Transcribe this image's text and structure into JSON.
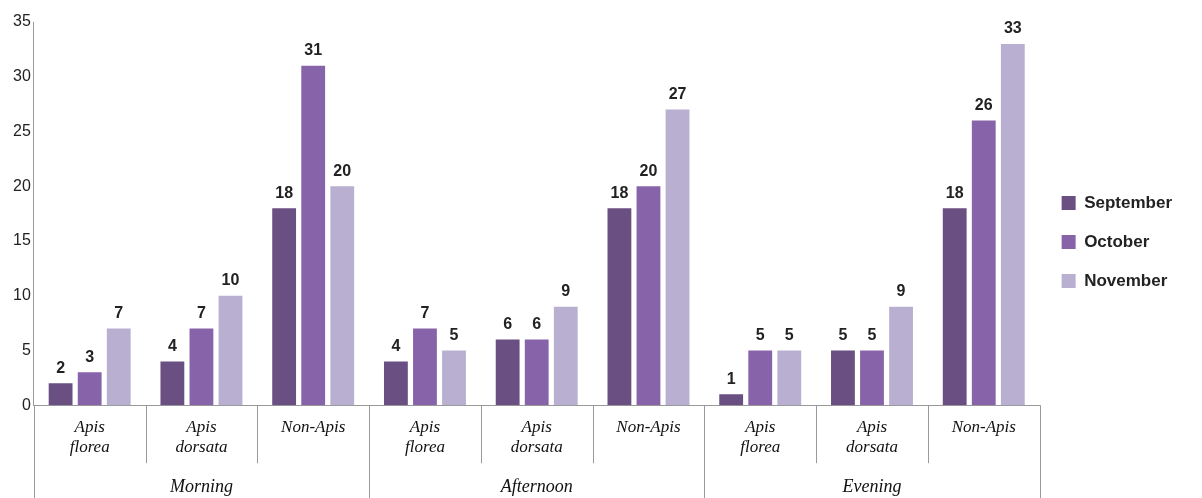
{
  "chart_data": {
    "type": "bar",
    "categories": [
      "Apis florea",
      "Apis dorsata",
      "Non-Apis",
      "Apis florea",
      "Apis dorsata",
      "Non-Apis",
      "Apis florea",
      "Apis dorsata",
      "Non-Apis"
    ],
    "series": [
      {
        "name": "September",
        "color": "#6a4f82",
        "values": [
          2,
          4,
          18,
          4,
          6,
          18,
          1,
          5,
          18
        ]
      },
      {
        "name": "October",
        "color": "#8764aa",
        "values": [
          3,
          7,
          31,
          7,
          6,
          20,
          5,
          5,
          26
        ]
      },
      {
        "name": "November",
        "color": "#b9afd1",
        "values": [
          7,
          10,
          20,
          5,
          9,
          27,
          5,
          9,
          33
        ]
      }
    ],
    "annotations": [
      "Morning",
      "Afternoon",
      "Evening"
    ],
    "ylim": [
      0,
      35
    ],
    "yticks": [
      0,
      5,
      10,
      15,
      20,
      25,
      30,
      35
    ],
    "grid": false,
    "legend": "right",
    "data_labels": true
  }
}
